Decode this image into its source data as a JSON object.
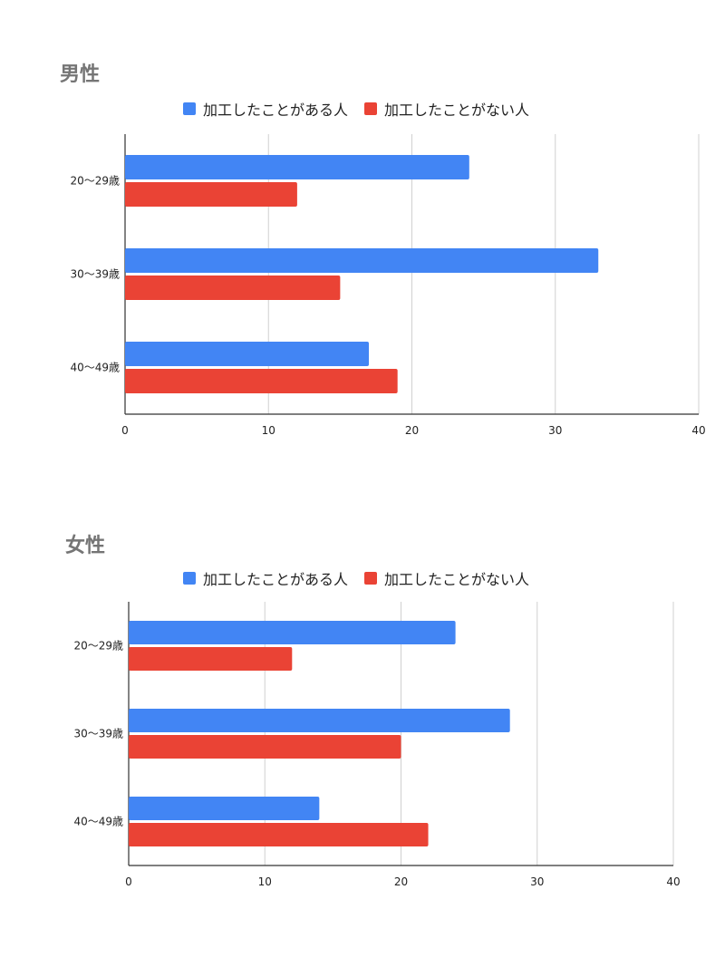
{
  "chart_data": [
    {
      "type": "bar",
      "orientation": "horizontal",
      "title": "男性",
      "categories": [
        "20〜29歳",
        "30〜39歳",
        "40〜49歳"
      ],
      "series": [
        {
          "name": "加工したことがある人",
          "color": "#4285f4",
          "values": [
            24,
            33,
            17
          ]
        },
        {
          "name": "加工したことがない人",
          "color": "#ea4335",
          "values": [
            12,
            15,
            19
          ]
        }
      ],
      "xlim": [
        0,
        40
      ],
      "xticks": [
        "0",
        "10",
        "20",
        "30",
        "40"
      ],
      "grid": true,
      "legend_position": "top"
    },
    {
      "type": "bar",
      "orientation": "horizontal",
      "title": "女性",
      "categories": [
        "20〜29歳",
        "30〜39歳",
        "40〜49歳"
      ],
      "series": [
        {
          "name": "加工したことがある人",
          "color": "#4285f4",
          "values": [
            24,
            28,
            14
          ]
        },
        {
          "name": "加工したことがない人",
          "color": "#ea4335",
          "values": [
            12,
            20,
            22
          ]
        }
      ],
      "xlim": [
        0,
        40
      ],
      "xticks": [
        "0",
        "10",
        "20",
        "30",
        "40"
      ],
      "grid": true,
      "legend_position": "top"
    }
  ]
}
